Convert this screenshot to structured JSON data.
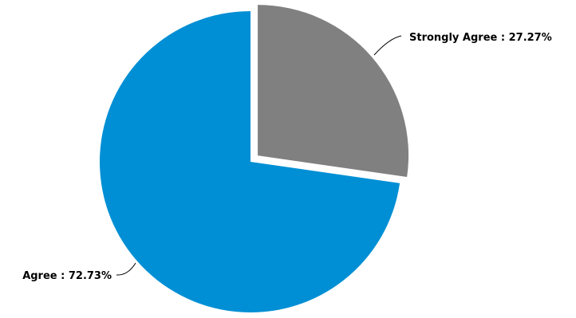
{
  "chart_data": {
    "type": "pie",
    "title": "",
    "slices": [
      {
        "label": "Strongly Agree",
        "value": 27.27,
        "display": "Strongly Agree : 27.27%",
        "color": "#808080",
        "exploded": true
      },
      {
        "label": "Agree",
        "value": 72.73,
        "display": "Agree : 72.73%",
        "color": "#008FD5",
        "exploded": false
      }
    ],
    "start_angle_deg": 0,
    "direction": "clockwise",
    "legend": "none"
  }
}
